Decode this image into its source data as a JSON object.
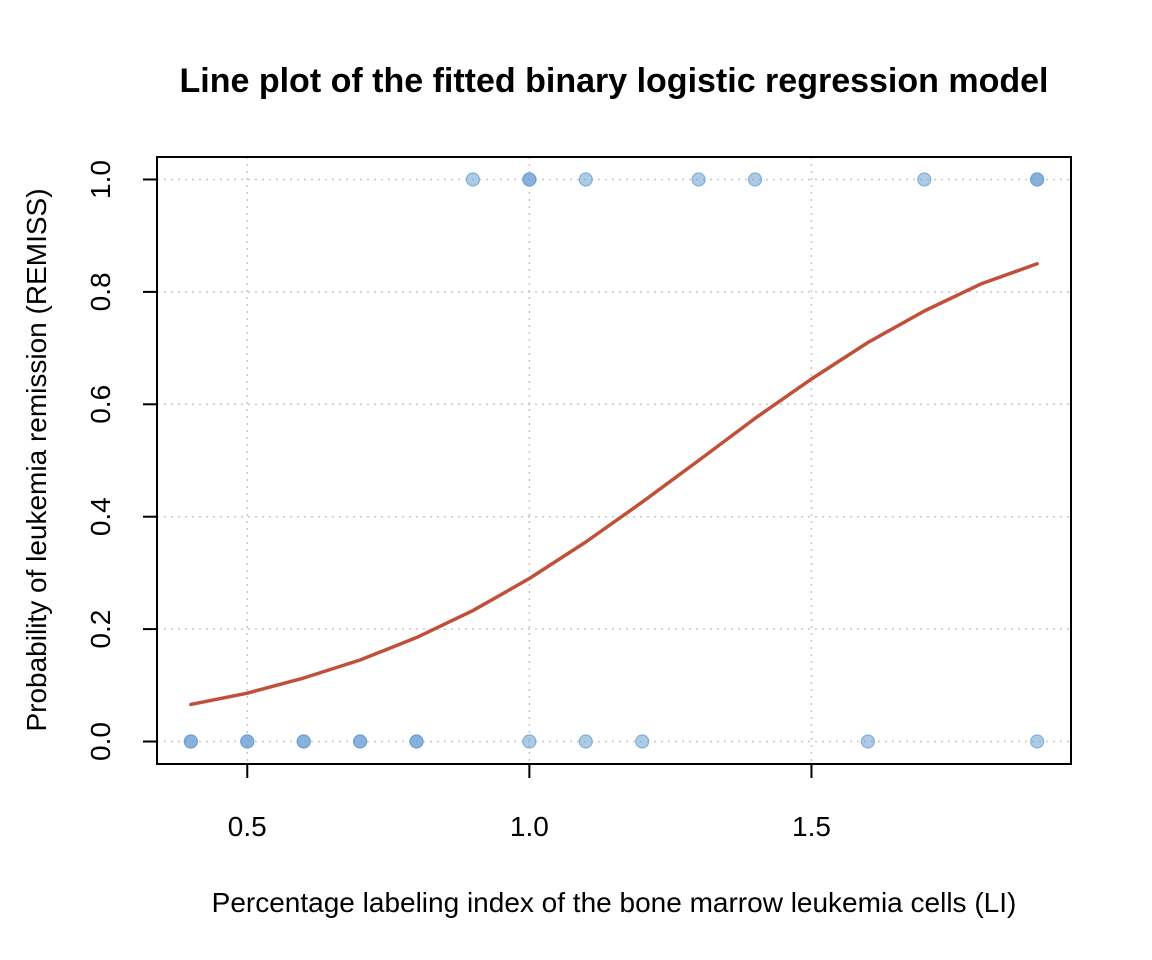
{
  "chart_data": {
    "type": "scatter",
    "title": "Line plot of the fitted binary logistic regression model",
    "xlabel": "Percentage labeling index of the bone marrow leukemia cells (LI)",
    "ylabel": "Probability of leukemia remission (REMISS)",
    "xlim": [
      0.34,
      1.96
    ],
    "ylim": [
      -0.04,
      1.04
    ],
    "x_ticks": [
      0.5,
      1.0,
      1.5
    ],
    "x_tick_labels": [
      "0.5",
      "1.0",
      "1.5"
    ],
    "y_ticks": [
      0.0,
      0.2,
      0.4,
      0.6,
      0.8,
      1.0
    ],
    "y_tick_labels": [
      "0.0",
      "0.2",
      "0.4",
      "0.6",
      "0.8",
      "1.0"
    ],
    "grid": true,
    "series": [
      {
        "kind": "points",
        "color": "#6a9fd1",
        "x": [
          0.4,
          0.4,
          0.5,
          0.5,
          0.6,
          0.6,
          0.7,
          0.7,
          0.8,
          0.8,
          1.0,
          1.1,
          1.2,
          1.6,
          1.9,
          0.9,
          1.0,
          1.0,
          1.1,
          1.3,
          1.4,
          1.7,
          1.9,
          1.9
        ],
        "y": [
          0,
          0,
          0,
          0,
          0,
          0,
          0,
          0,
          0,
          0,
          0,
          0,
          0,
          0,
          0,
          1,
          1,
          1,
          1,
          1,
          1,
          1,
          1,
          1
        ]
      },
      {
        "kind": "line",
        "color": "#c0503a",
        "x": [
          0.4,
          0.5,
          0.6,
          0.7,
          0.8,
          0.9,
          1.0,
          1.1,
          1.2,
          1.3,
          1.4,
          1.5,
          1.6,
          1.7,
          1.8,
          1.9
        ],
        "y": [
          0.066,
          0.086,
          0.113,
          0.145,
          0.185,
          0.233,
          0.29,
          0.355,
          0.426,
          0.5,
          0.575,
          0.645,
          0.71,
          0.766,
          0.814,
          0.85
        ]
      }
    ]
  }
}
